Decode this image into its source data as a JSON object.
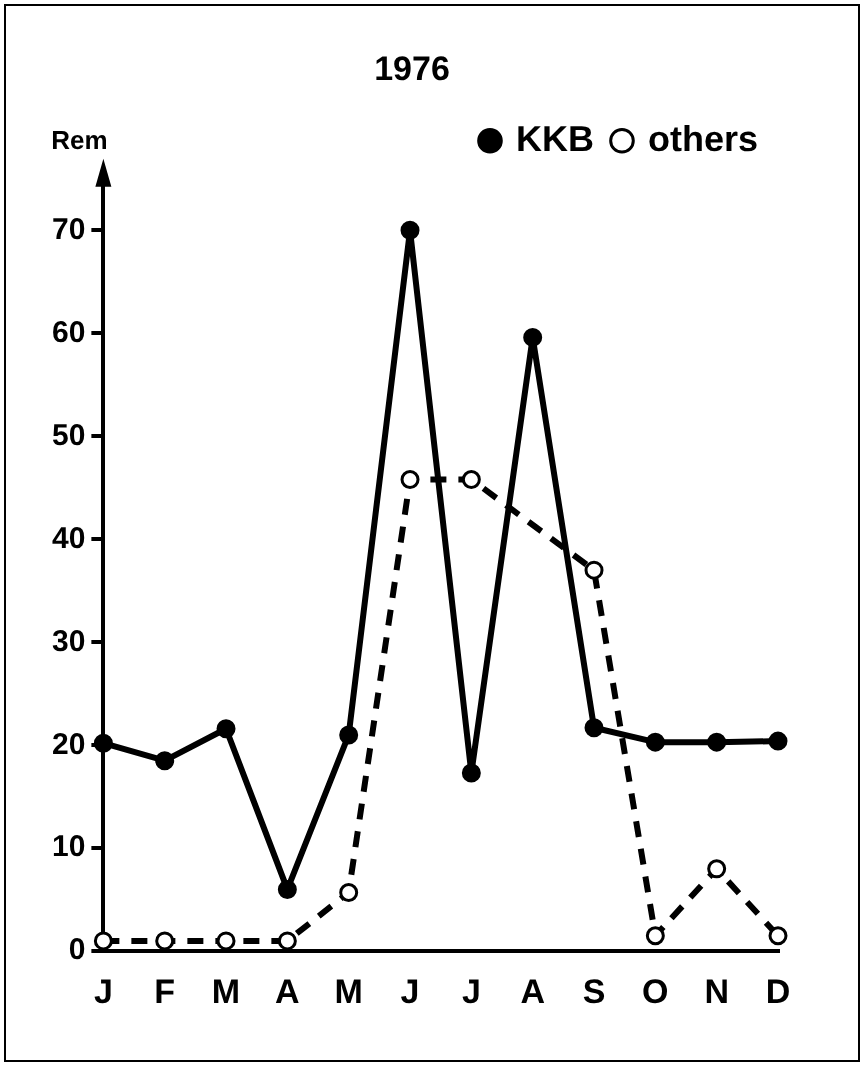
{
  "chart_data": {
    "type": "line",
    "title": "1976",
    "ylabel": "Rem",
    "categories": [
      "J",
      "F",
      "M",
      "A",
      "M",
      "J",
      "J",
      "A",
      "S",
      "O",
      "N",
      "D"
    ],
    "series": [
      {
        "name": "KKB",
        "color": "#000000",
        "line_style": "solid",
        "values": [
          20.2,
          18.5,
          21.6,
          6,
          21,
          70,
          17.3,
          59.6,
          21.7,
          20.3,
          20.3,
          20.4
        ]
      },
      {
        "name": "others",
        "color": "#000000",
        "line_style": "dashed",
        "values": [
          1,
          1,
          1,
          1,
          5.7,
          45.8,
          45.8,
          null,
          37,
          1.5,
          8,
          1.5
        ]
      }
    ],
    "ylim": [
      0,
      75
    ],
    "yticks": [
      0,
      10,
      20,
      30,
      40,
      50,
      60,
      70
    ],
    "grid": false,
    "legend": "top right",
    "marker": "circle"
  }
}
